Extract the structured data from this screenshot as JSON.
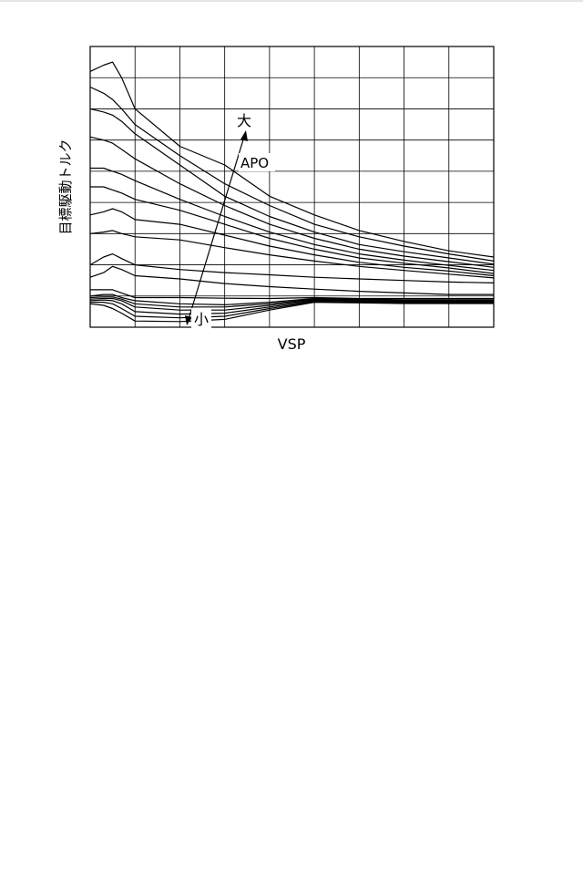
{
  "chart_data": {
    "type": "line",
    "xlabel": "VSP",
    "ylabel": "目標駆動トルク",
    "annotations": {
      "parameter": "APO",
      "large": "大",
      "small": "小"
    },
    "grid": true,
    "legend": "none",
    "xlim": [
      0,
      9
    ],
    "ylim": [
      0,
      9
    ],
    "x": [
      0,
      0.3,
      0.5,
      0.7,
      1,
      2,
      3,
      4,
      5,
      6,
      7,
      8,
      9
    ],
    "series": [
      {
        "values": [
          8.2,
          8.4,
          8.5,
          8.0,
          7.0,
          5.8,
          5.2,
          4.2,
          3.6,
          3.1,
          2.75,
          2.45,
          2.25
        ]
      },
      {
        "values": [
          7.7,
          7.5,
          7.3,
          7.0,
          6.5,
          5.5,
          4.6,
          3.9,
          3.3,
          2.9,
          2.6,
          2.35,
          2.12
        ]
      },
      {
        "values": [
          7.0,
          6.9,
          6.8,
          6.6,
          6.2,
          5.2,
          4.2,
          3.55,
          3.05,
          2.65,
          2.42,
          2.22,
          2.02
        ]
      },
      {
        "values": [
          6.1,
          6.0,
          5.9,
          5.7,
          5.4,
          4.6,
          3.9,
          3.3,
          2.85,
          2.5,
          2.28,
          2.1,
          1.92
        ]
      },
      {
        "values": [
          5.1,
          5.1,
          5.0,
          4.9,
          4.7,
          4.1,
          3.55,
          3.05,
          2.65,
          2.35,
          2.15,
          1.98,
          1.82
        ]
      },
      {
        "values": [
          4.5,
          4.5,
          4.4,
          4.3,
          4.1,
          3.75,
          3.3,
          2.85,
          2.5,
          2.22,
          2.05,
          1.9,
          1.72
        ]
      },
      {
        "values": [
          3.6,
          3.7,
          3.8,
          3.7,
          3.45,
          3.3,
          2.95,
          2.6,
          2.32,
          2.08,
          1.92,
          1.8,
          1.65
        ]
      },
      {
        "values": [
          3.0,
          3.05,
          3.1,
          3.0,
          2.9,
          2.8,
          2.55,
          2.32,
          2.12,
          1.95,
          1.82,
          1.7,
          1.58
        ]
      },
      {
        "values": [
          2.0,
          2.25,
          2.35,
          2.2,
          2.0,
          1.85,
          1.75,
          1.68,
          1.6,
          1.55,
          1.5,
          1.45,
          1.42
        ]
      },
      {
        "values": [
          1.6,
          1.75,
          1.95,
          1.85,
          1.65,
          1.55,
          1.4,
          1.3,
          1.22,
          1.15,
          1.1,
          1.05,
          1.05
        ]
      },
      {
        "values": [
          1.2,
          1.2,
          1.2,
          1.1,
          0.95,
          0.95,
          0.93,
          0.92,
          0.95,
          0.92,
          0.92,
          0.92,
          0.92
        ]
      },
      {
        "values": [
          1.0,
          1.05,
          1.05,
          0.95,
          0.85,
          0.75,
          0.72,
          0.8,
          0.92,
          0.9,
          0.88,
          0.88,
          0.88
        ]
      },
      {
        "values": [
          0.95,
          0.97,
          0.97,
          0.9,
          0.75,
          0.65,
          0.65,
          0.75,
          0.9,
          0.88,
          0.85,
          0.85,
          0.85
        ]
      },
      {
        "values": [
          0.9,
          0.92,
          0.92,
          0.85,
          0.65,
          0.55,
          0.55,
          0.7,
          0.88,
          0.85,
          0.83,
          0.82,
          0.82
        ]
      },
      {
        "values": [
          0.85,
          0.87,
          0.85,
          0.75,
          0.5,
          0.42,
          0.45,
          0.65,
          0.85,
          0.83,
          0.8,
          0.8,
          0.8
        ]
      },
      {
        "values": [
          0.8,
          0.8,
          0.75,
          0.6,
          0.35,
          0.3,
          0.35,
          0.6,
          0.82,
          0.8,
          0.78,
          0.78,
          0.78
        ]
      },
      {
        "values": [
          0.75,
          0.7,
          0.6,
          0.45,
          0.2,
          0.18,
          0.25,
          0.55,
          0.8,
          0.78,
          0.76,
          0.76,
          0.76
        ]
      }
    ]
  }
}
